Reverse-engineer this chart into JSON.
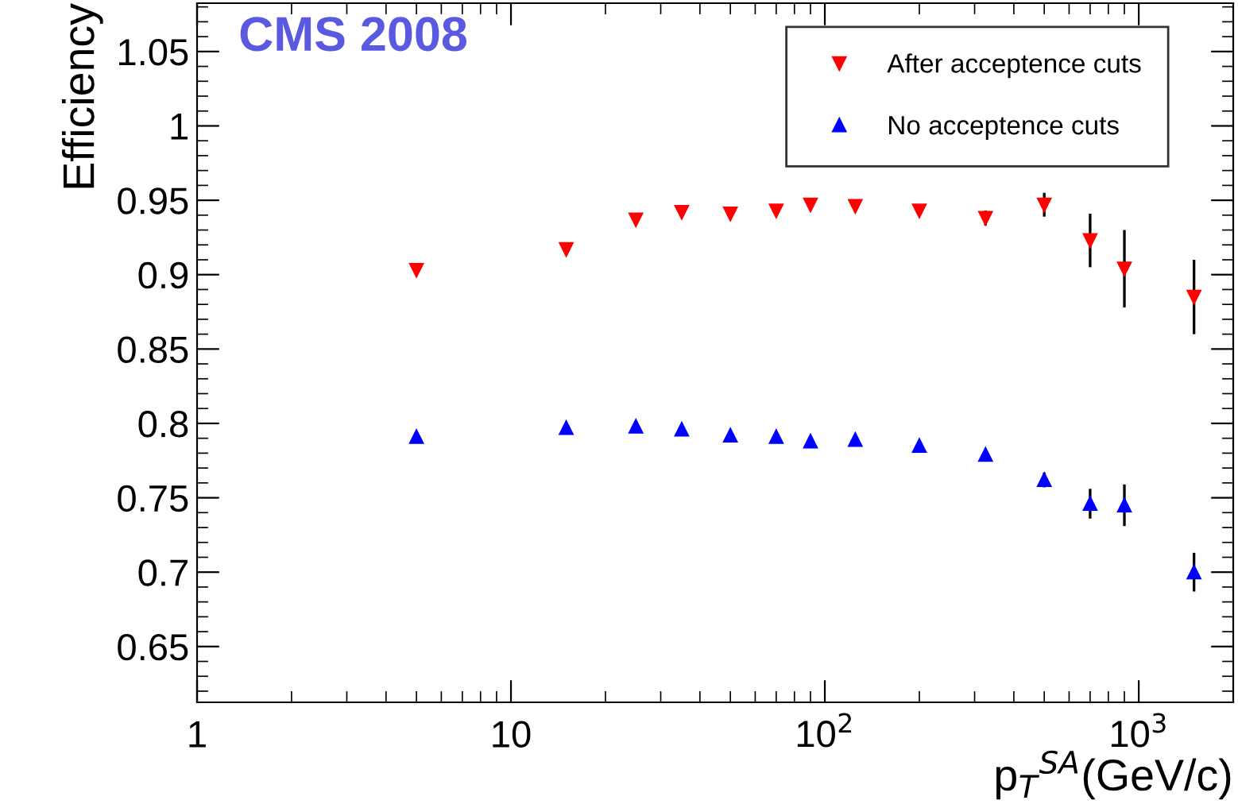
{
  "chart_data": {
    "type": "scatter",
    "xlabel": "p$_{T}$$^{SA}$(GeV/c)",
    "ylabel": "Efficiency",
    "annotations": [
      "CMS 2008"
    ],
    "log": "x",
    "xlim": [
      1,
      2000
    ],
    "xticks": [
      1,
      10,
      {
        "value": 100,
        "label": "10$^{2}$"
      },
      {
        "value": 1000,
        "label": "10$^{3}$"
      }
    ],
    "ylim": [
      0.6125,
      1.0825
    ],
    "yticks": [
      0.65,
      0.7,
      0.75,
      0.8,
      0.85,
      0.9,
      0.95,
      1,
      1.05
    ],
    "x": [
      5,
      15,
      25,
      35,
      50,
      70,
      90,
      125,
      200,
      325,
      500,
      700,
      900,
      1500
    ],
    "grid": false,
    "legend": "top right",
    "series": [
      {
        "name": "After acceptence cuts",
        "color": "#ff0000",
        "marker": "triangle_down",
        "values": [
          0.903,
          0.917,
          0.937,
          0.942,
          0.941,
          0.943,
          0.947,
          0.946,
          0.943,
          0.938,
          0.947,
          0.923,
          0.904,
          0.885
        ],
        "errors": [
          null,
          null,
          null,
          null,
          null,
          null,
          null,
          null,
          null,
          0.005,
          0.008,
          0.018,
          0.026,
          0.025
        ]
      },
      {
        "name": "No acceptence cuts",
        "color": "#0000ff",
        "marker": "triangle",
        "values": [
          0.791,
          0.797,
          0.798,
          0.796,
          0.792,
          0.791,
          0.788,
          0.789,
          0.785,
          0.779,
          0.762,
          0.746,
          0.745,
          0.7
        ],
        "errors": [
          null,
          null,
          null,
          null,
          null,
          null,
          null,
          null,
          null,
          null,
          0.005,
          0.01,
          0.014,
          0.013
        ]
      }
    ]
  }
}
